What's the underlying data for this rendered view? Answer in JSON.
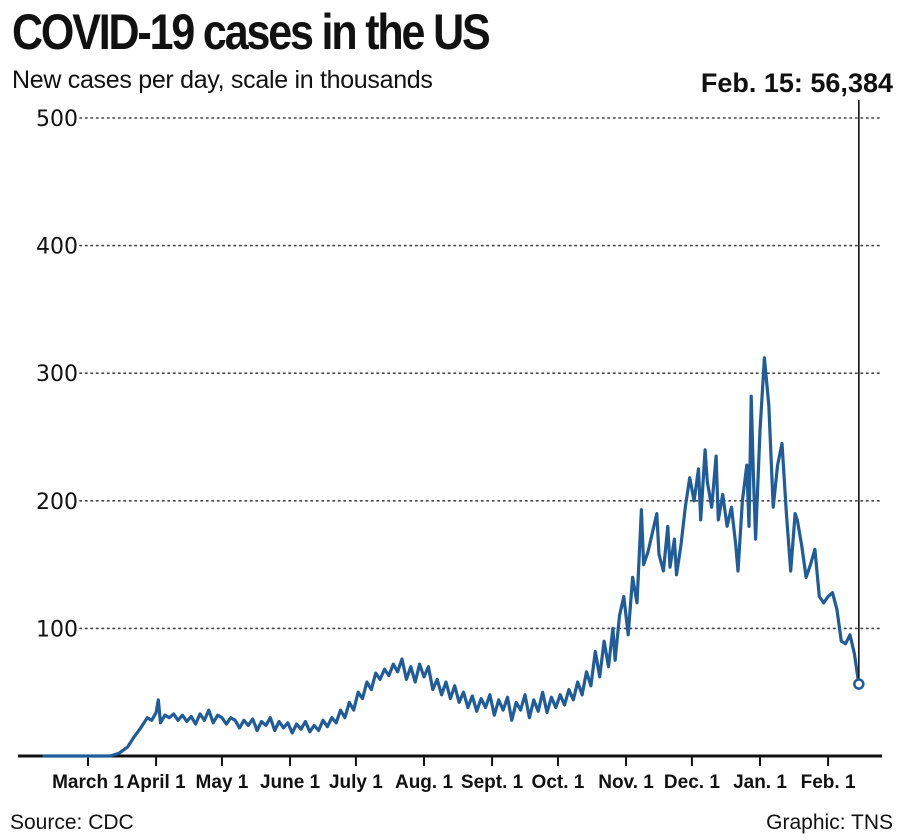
{
  "header": {
    "title": "COVID-19 cases in the US",
    "subtitle": "New cases per day, scale in thousands",
    "callout": "Feb. 15: 56,384"
  },
  "footer": {
    "source": "Source: CDC",
    "credit": "Graphic: TNS"
  },
  "colors": {
    "line": "#1f5c99",
    "grid": "#444444",
    "axis": "#111111"
  },
  "chart_data": {
    "type": "line",
    "title": "COVID-19 cases in the US",
    "subtitle": "New cases per day, scale in thousands",
    "xlabel": "",
    "ylabel": "",
    "ylim": [
      0,
      500
    ],
    "yticks": [
      100,
      200,
      300,
      400,
      500
    ],
    "grid": "horizontal dotted",
    "legend": "none",
    "x_tick_labels": [
      "March 1",
      "April 1",
      "May 1",
      "June 1",
      "July 1",
      "Aug. 1",
      "Sept. 1",
      "Oct. 1",
      "Nov. 1",
      "Dec. 1",
      "Jan. 1",
      "Feb. 1"
    ],
    "x_tick_days": [
      0,
      31,
      61,
      92,
      122,
      153,
      184,
      214,
      245,
      275,
      306,
      337
    ],
    "x_range_days": [
      -20,
      351
    ],
    "annotation": {
      "label": "Feb. 15: 56,384",
      "day": 351,
      "value": 56.384
    },
    "series": [
      {
        "values_unit": "thousands of new cases per day",
        "points": [
          [
            -20,
            0
          ],
          [
            10,
            0
          ],
          [
            14,
            2
          ],
          [
            18,
            7
          ],
          [
            21,
            15
          ],
          [
            24,
            22
          ],
          [
            27,
            30
          ],
          [
            29,
            28
          ],
          [
            31,
            34
          ],
          [
            32,
            44
          ],
          [
            33,
            26
          ],
          [
            35,
            32
          ],
          [
            37,
            30
          ],
          [
            39,
            33
          ],
          [
            41,
            28
          ],
          [
            43,
            32
          ],
          [
            45,
            27
          ],
          [
            47,
            31
          ],
          [
            49,
            25
          ],
          [
            51,
            33
          ],
          [
            53,
            28
          ],
          [
            55,
            36
          ],
          [
            57,
            26
          ],
          [
            59,
            32
          ],
          [
            61,
            30
          ],
          [
            63,
            25
          ],
          [
            65,
            30
          ],
          [
            67,
            28
          ],
          [
            69,
            22
          ],
          [
            71,
            28
          ],
          [
            73,
            24
          ],
          [
            75,
            29
          ],
          [
            77,
            20
          ],
          [
            79,
            27
          ],
          [
            81,
            24
          ],
          [
            83,
            30
          ],
          [
            85,
            20
          ],
          [
            87,
            27
          ],
          [
            89,
            22
          ],
          [
            91,
            26
          ],
          [
            93,
            18
          ],
          [
            95,
            25
          ],
          [
            97,
            21
          ],
          [
            99,
            27
          ],
          [
            101,
            19
          ],
          [
            103,
            24
          ],
          [
            105,
            20
          ],
          [
            107,
            28
          ],
          [
            109,
            23
          ],
          [
            111,
            30
          ],
          [
            113,
            26
          ],
          [
            115,
            36
          ],
          [
            117,
            30
          ],
          [
            119,
            42
          ],
          [
            121,
            36
          ],
          [
            123,
            50
          ],
          [
            125,
            45
          ],
          [
            127,
            58
          ],
          [
            129,
            52
          ],
          [
            131,
            65
          ],
          [
            133,
            60
          ],
          [
            135,
            68
          ],
          [
            137,
            63
          ],
          [
            139,
            72
          ],
          [
            141,
            66
          ],
          [
            143,
            76
          ],
          [
            145,
            60
          ],
          [
            147,
            70
          ],
          [
            149,
            58
          ],
          [
            151,
            72
          ],
          [
            153,
            62
          ],
          [
            155,
            70
          ],
          [
            157,
            52
          ],
          [
            159,
            60
          ],
          [
            161,
            48
          ],
          [
            163,
            58
          ],
          [
            165,
            45
          ],
          [
            167,
            55
          ],
          [
            169,
            42
          ],
          [
            171,
            50
          ],
          [
            173,
            38
          ],
          [
            175,
            47
          ],
          [
            177,
            35
          ],
          [
            179,
            45
          ],
          [
            181,
            38
          ],
          [
            183,
            48
          ],
          [
            185,
            32
          ],
          [
            187,
            44
          ],
          [
            189,
            36
          ],
          [
            191,
            46
          ],
          [
            193,
            28
          ],
          [
            195,
            42
          ],
          [
            197,
            36
          ],
          [
            199,
            48
          ],
          [
            201,
            30
          ],
          [
            203,
            44
          ],
          [
            205,
            35
          ],
          [
            207,
            50
          ],
          [
            209,
            34
          ],
          [
            211,
            46
          ],
          [
            213,
            38
          ],
          [
            215,
            48
          ],
          [
            217,
            40
          ],
          [
            219,
            52
          ],
          [
            221,
            44
          ],
          [
            223,
            58
          ],
          [
            225,
            48
          ],
          [
            227,
            66
          ],
          [
            229,
            55
          ],
          [
            231,
            82
          ],
          [
            233,
            62
          ],
          [
            235,
            90
          ],
          [
            237,
            70
          ],
          [
            239,
            100
          ],
          [
            240,
            75
          ],
          [
            242,
            110
          ],
          [
            244,
            125
          ],
          [
            246,
            95
          ],
          [
            248,
            140
          ],
          [
            250,
            120
          ],
          [
            252,
            193
          ],
          [
            253,
            150
          ],
          [
            255,
            160
          ],
          [
            257,
            175
          ],
          [
            259,
            190
          ],
          [
            260,
            158
          ],
          [
            262,
            145
          ],
          [
            264,
            180
          ],
          [
            265,
            148
          ],
          [
            267,
            170
          ],
          [
            268,
            142
          ],
          [
            270,
            165
          ],
          [
            272,
            195
          ],
          [
            274,
            218
          ],
          [
            276,
            200
          ],
          [
            278,
            225
          ],
          [
            279,
            185
          ],
          [
            281,
            240
          ],
          [
            282,
            215
          ],
          [
            284,
            195
          ],
          [
            286,
            235
          ],
          [
            287,
            185
          ],
          [
            289,
            205
          ],
          [
            291,
            180
          ],
          [
            293,
            195
          ],
          [
            295,
            165
          ],
          [
            296,
            145
          ],
          [
            298,
            200
          ],
          [
            300,
            228
          ],
          [
            301,
            180
          ],
          [
            302,
            282
          ],
          [
            303,
            220
          ],
          [
            304,
            170
          ],
          [
            306,
            255
          ],
          [
            308,
            312
          ],
          [
            310,
            275
          ],
          [
            312,
            195
          ],
          [
            314,
            228
          ],
          [
            316,
            245
          ],
          [
            318,
            190
          ],
          [
            320,
            145
          ],
          [
            322,
            190
          ],
          [
            323,
            185
          ],
          [
            325,
            165
          ],
          [
            327,
            140
          ],
          [
            329,
            150
          ],
          [
            331,
            162
          ],
          [
            333,
            125
          ],
          [
            335,
            120
          ],
          [
            337,
            125
          ],
          [
            339,
            128
          ],
          [
            341,
            115
          ],
          [
            343,
            90
          ],
          [
            345,
            88
          ],
          [
            347,
            95
          ],
          [
            349,
            80
          ],
          [
            351,
            56.384
          ]
        ]
      }
    ]
  }
}
